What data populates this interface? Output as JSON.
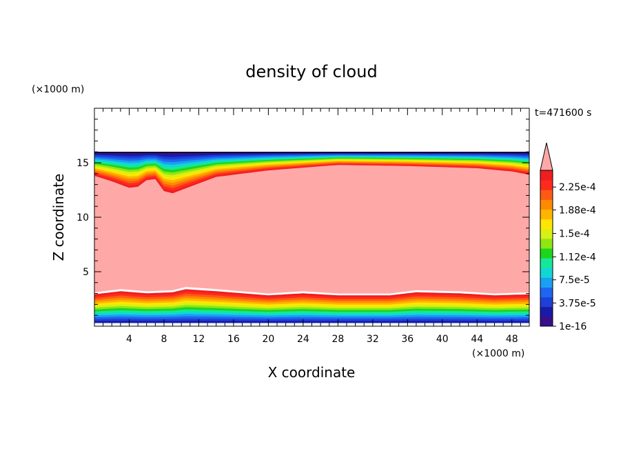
{
  "chart_data": {
    "type": "heatmap",
    "title": "density of cloud",
    "xlabel": "X coordinate",
    "ylabel": "Z coordinate",
    "x_unit": "(×1000 m)",
    "y_unit": "(×1000 m)",
    "time_label": "t=471600 s",
    "xlim": [
      0,
      50
    ],
    "ylim": [
      0,
      20
    ],
    "x_ticks": [
      4,
      8,
      12,
      16,
      20,
      24,
      28,
      32,
      36,
      40,
      44,
      48
    ],
    "y_ticks": [
      5,
      10,
      15
    ],
    "colorbar": {
      "labels": [
        "1e-16",
        "3.75e-5",
        "7.5e-5",
        "1.12e-4",
        "1.5e-4",
        "1.88e-4",
        "2.25e-4"
      ],
      "label_levels": [
        0,
        3.75e-05,
        7.5e-05,
        0.000112,
        0.00015,
        0.000188,
        0.000225
      ],
      "colors": [
        "#3a0f8a",
        "#1a1aa8",
        "#1e3fd8",
        "#1e66f0",
        "#1aa0f0",
        "#12d6d6",
        "#14e89a",
        "#1cd61c",
        "#8ee614",
        "#d8f014",
        "#ffe600",
        "#ffb400",
        "#ff8a00",
        "#ff5a14",
        "#ff2a1e",
        "#f01e1e"
      ],
      "over_color": "#ffa8a8",
      "extend": "max"
    },
    "bands": {
      "top_boundary_z": 16,
      "base_boundary_z": 0.3,
      "upper_core_edge": [
        {
          "x": 0,
          "z": 13.8
        },
        {
          "x": 2,
          "z": 13.3
        },
        {
          "x": 4,
          "z": 12.7
        },
        {
          "x": 5,
          "z": 12.8
        },
        {
          "x": 6,
          "z": 13.4
        },
        {
          "x": 7,
          "z": 13.5
        },
        {
          "x": 8,
          "z": 12.4
        },
        {
          "x": 9,
          "z": 12.2
        },
        {
          "x": 11,
          "z": 12.8
        },
        {
          "x": 14,
          "z": 13.7
        },
        {
          "x": 20,
          "z": 14.3
        },
        {
          "x": 28,
          "z": 14.8
        },
        {
          "x": 36,
          "z": 14.7
        },
        {
          "x": 44,
          "z": 14.5
        },
        {
          "x": 48,
          "z": 14.2
        },
        {
          "x": 50,
          "z": 13.9
        }
      ],
      "lower_core_edge": [
        {
          "x": 0,
          "z": 3.1
        },
        {
          "x": 3,
          "z": 3.4
        },
        {
          "x": 6,
          "z": 3.2
        },
        {
          "x": 9,
          "z": 3.3
        },
        {
          "x": 10.5,
          "z": 3.6
        },
        {
          "x": 14,
          "z": 3.4
        },
        {
          "x": 20,
          "z": 3.0
        },
        {
          "x": 24,
          "z": 3.2
        },
        {
          "x": 28,
          "z": 3.0
        },
        {
          "x": 34,
          "z": 3.0
        },
        {
          "x": 37,
          "z": 3.3
        },
        {
          "x": 42,
          "z": 3.2
        },
        {
          "x": 46,
          "z": 3.0
        },
        {
          "x": 50,
          "z": 3.1
        }
      ]
    }
  }
}
